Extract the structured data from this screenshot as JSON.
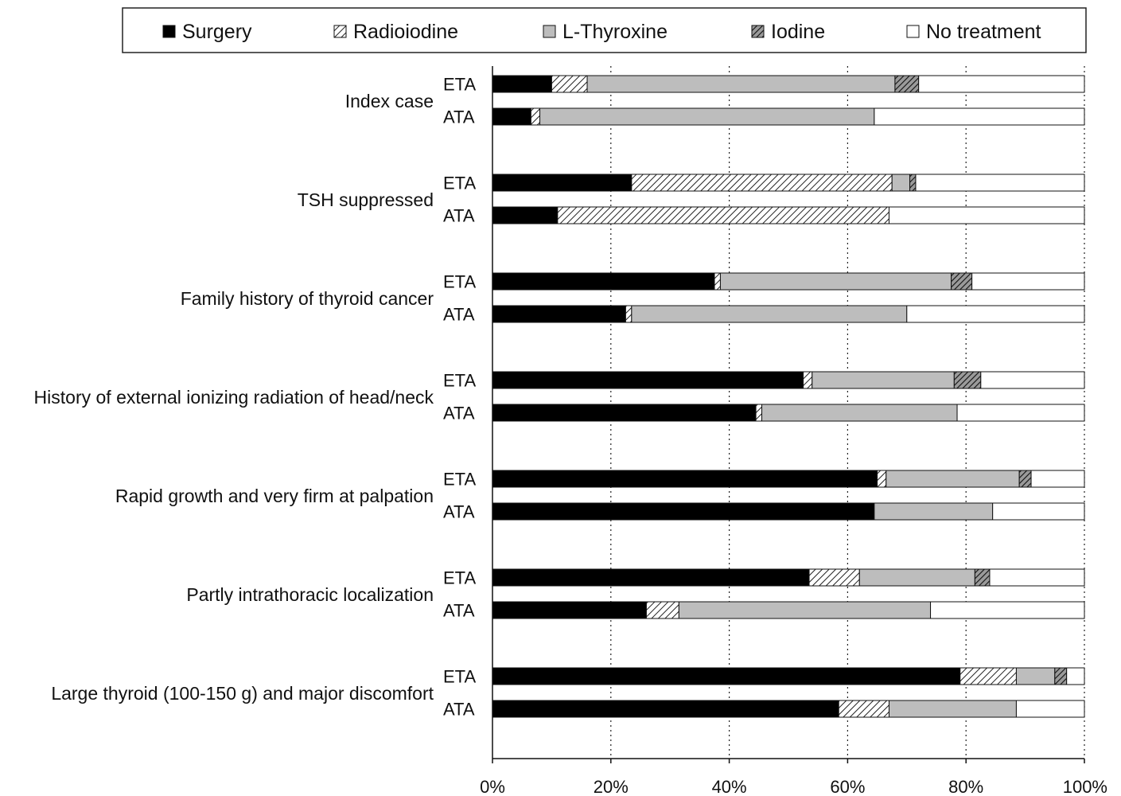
{
  "chart_data": {
    "type": "bar",
    "orientation": "horizontal",
    "stacking": "percent",
    "xlim": [
      0,
      100
    ],
    "x_ticks": [
      "0%",
      "20%",
      "40%",
      "60%",
      "80%",
      "100%"
    ],
    "grid": "vertical dotted",
    "legend_position": "top",
    "series": [
      {
        "name": "Surgery",
        "fill": "solid-black"
      },
      {
        "name": "Radioiodine",
        "fill": "hatch"
      },
      {
        "name": "L-Thyroxine",
        "fill": "light-grey"
      },
      {
        "name": "Iodine",
        "fill": "cross-hatch"
      },
      {
        "name": "No treatment",
        "fill": "white"
      }
    ],
    "groups": [
      {
        "label": "Index case",
        "bars": [
          {
            "label": "ETA",
            "values": [
              10,
              6,
              52,
              4,
              28
            ]
          },
          {
            "label": "ATA",
            "values": [
              6.5,
              1.5,
              56.5,
              0,
              35.5
            ]
          }
        ]
      },
      {
        "label": "TSH suppressed",
        "bars": [
          {
            "label": "ETA",
            "values": [
              23.5,
              44,
              3,
              1,
              28.5
            ]
          },
          {
            "label": "ATA",
            "values": [
              11,
              56,
              0,
              0,
              33
            ]
          }
        ]
      },
      {
        "label": "Family history of thyroid cancer",
        "bars": [
          {
            "label": "ETA",
            "values": [
              37.5,
              1,
              39,
              3.5,
              19
            ]
          },
          {
            "label": "ATA",
            "values": [
              22.5,
              1,
              46.5,
              0,
              30
            ]
          }
        ]
      },
      {
        "label": "History of external ionizing radiation of head/neck",
        "bars": [
          {
            "label": "ETA",
            "values": [
              52.5,
              1.5,
              24,
              4.5,
              17.5
            ]
          },
          {
            "label": "ATA",
            "values": [
              44.5,
              1,
              33,
              0,
              21.5
            ]
          }
        ]
      },
      {
        "label": "Rapid growth and very firm at palpation",
        "bars": [
          {
            "label": "ETA",
            "values": [
              65,
              1.5,
              22.5,
              2,
              9
            ]
          },
          {
            "label": "ATA",
            "values": [
              64.5,
              0,
              20,
              0,
              15.5
            ]
          }
        ]
      },
      {
        "label": "Partly intrathoracic localization",
        "bars": [
          {
            "label": "ETA",
            "values": [
              53.5,
              8.5,
              19.5,
              2.5,
              16
            ]
          },
          {
            "label": "ATA",
            "values": [
              26,
              5.5,
              42.5,
              0,
              26
            ]
          }
        ]
      },
      {
        "label": "Large thyroid (100-150 g) and major discomfort",
        "bars": [
          {
            "label": "ETA",
            "values": [
              79,
              9.5,
              6.5,
              2,
              3
            ]
          },
          {
            "label": "ATA",
            "values": [
              58.5,
              8.5,
              21.5,
              0,
              11.5
            ]
          }
        ]
      }
    ]
  }
}
